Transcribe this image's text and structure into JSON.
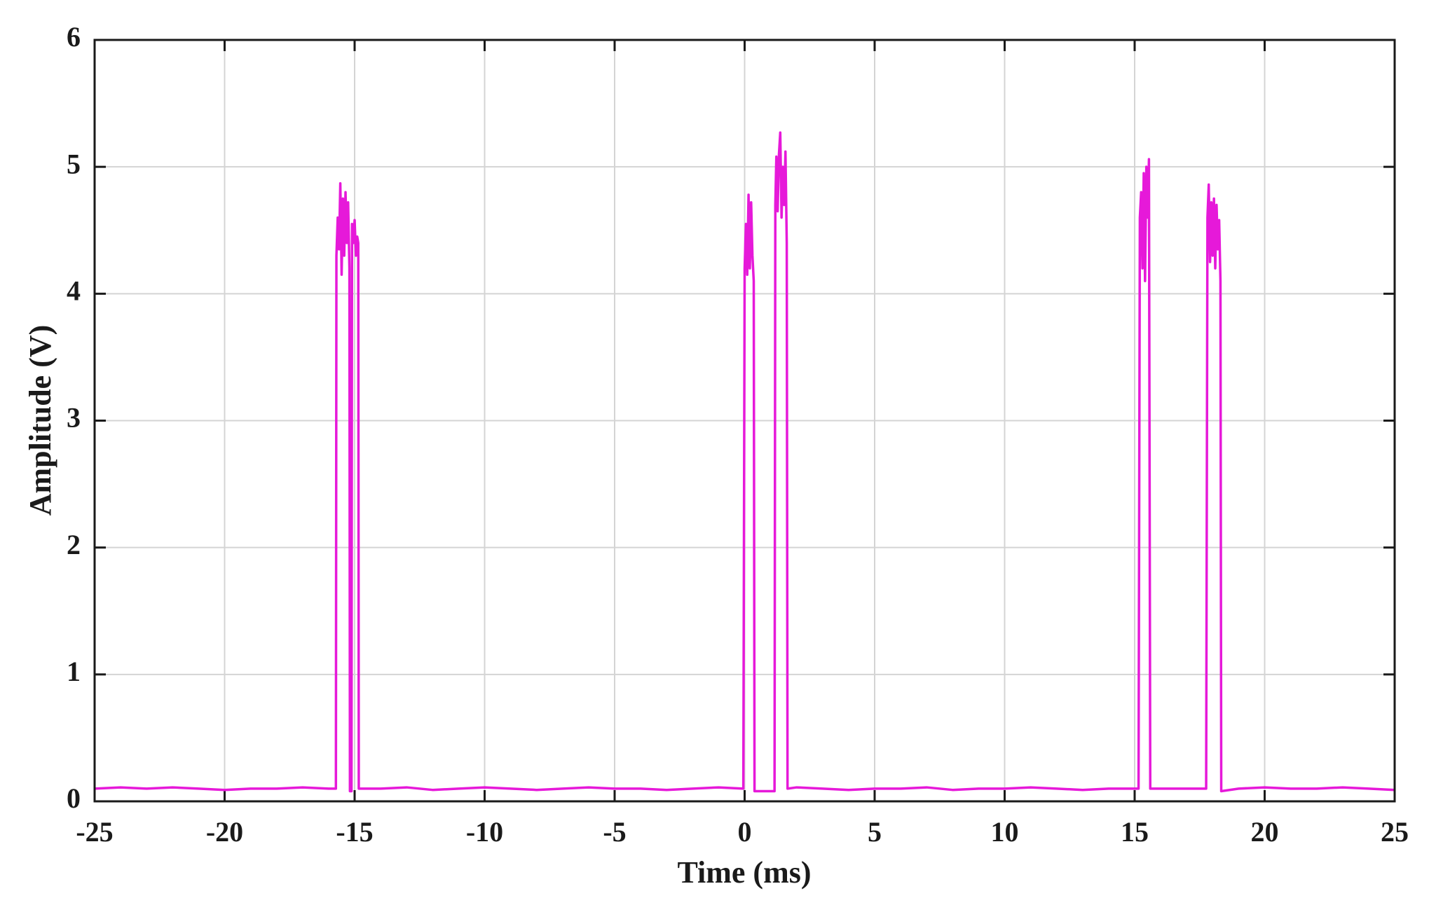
{
  "chart_data": {
    "type": "line",
    "x_label": "Time (ms)",
    "y_label": "Amplitude (V)",
    "x": [
      -25,
      -24,
      -23,
      -22,
      -21,
      -20,
      -19,
      -18,
      -17,
      -16,
      -15.72,
      -15.7,
      -15.65,
      -15.6,
      -15.55,
      -15.5,
      -15.45,
      -15.4,
      -15.35,
      -15.3,
      -15.25,
      -15.2,
      -15.18,
      -15.12,
      -15.1,
      -15.05,
      -15.0,
      -14.95,
      -14.9,
      -14.86,
      -14.84,
      -14,
      -13,
      -12,
      -11,
      -10,
      -9,
      -8,
      -7,
      -6,
      -5,
      -4,
      -3,
      -2,
      -1,
      -0.05,
      0.0,
      0.05,
      0.1,
      0.15,
      0.2,
      0.25,
      0.3,
      0.35,
      0.38,
      1.15,
      1.18,
      1.22,
      1.27,
      1.32,
      1.37,
      1.42,
      1.47,
      1.52,
      1.57,
      1.62,
      1.65,
      2,
      3,
      4,
      5,
      6,
      7,
      8,
      9,
      10,
      11,
      12,
      13,
      14,
      15,
      15.15,
      15.2,
      15.25,
      15.3,
      15.35,
      15.4,
      15.45,
      15.5,
      15.55,
      15.6,
      16,
      17,
      17.75,
      17.8,
      17.85,
      17.9,
      17.95,
      18.0,
      18.05,
      18.1,
      18.15,
      18.2,
      18.25,
      18.3,
      18.33,
      19,
      20,
      21,
      22,
      23,
      24,
      25
    ],
    "series": [
      {
        "color": "#e619d9",
        "values": [
          0.1,
          0.11,
          0.1,
          0.11,
          0.1,
          0.09,
          0.1,
          0.1,
          0.11,
          0.1,
          0.1,
          4.3,
          4.6,
          4.35,
          4.87,
          4.15,
          4.75,
          4.3,
          4.8,
          4.4,
          4.72,
          4.2,
          0.08,
          0.08,
          4.55,
          4.4,
          4.58,
          4.3,
          4.45,
          4.4,
          0.1,
          0.1,
          0.11,
          0.09,
          0.1,
          0.11,
          0.1,
          0.09,
          0.1,
          0.11,
          0.1,
          0.1,
          0.09,
          0.1,
          0.11,
          0.1,
          4.2,
          4.55,
          4.15,
          4.78,
          4.2,
          4.72,
          4.3,
          4.1,
          0.08,
          0.08,
          4.7,
          5.08,
          4.65,
          5.1,
          5.27,
          4.6,
          5.0,
          4.7,
          5.12,
          4.4,
          0.1,
          0.11,
          0.1,
          0.09,
          0.1,
          0.1,
          0.11,
          0.09,
          0.1,
          0.1,
          0.11,
          0.1,
          0.09,
          0.1,
          0.1,
          0.1,
          4.6,
          4.8,
          4.2,
          4.95,
          4.1,
          5.0,
          4.6,
          5.06,
          0.1,
          0.1,
          0.1,
          0.1,
          4.6,
          4.86,
          4.25,
          4.72,
          4.3,
          4.75,
          4.2,
          4.7,
          4.35,
          4.58,
          4.1,
          0.08,
          0.1,
          0.11,
          0.1,
          0.1,
          0.11,
          0.1,
          0.09
        ]
      }
    ],
    "xlim": [
      -25,
      25
    ],
    "xticks": [
      -25,
      -20,
      -15,
      -10,
      -5,
      0,
      5,
      10,
      15,
      20,
      25
    ],
    "ylim": [
      0,
      6
    ],
    "yticks": [
      0,
      1,
      2,
      3,
      4,
      5,
      6
    ],
    "grid": true
  }
}
